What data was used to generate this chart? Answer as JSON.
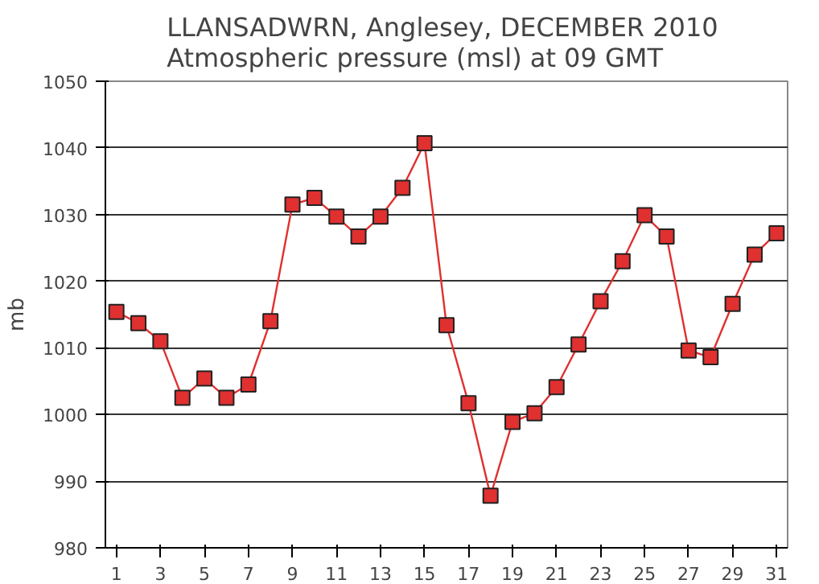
{
  "chart_data": {
    "type": "line",
    "title": "LLANSADWRN, Anglesey,  DECEMBER 2010\nAtmospheric pressure  (msl) at 09 GMT",
    "ylabel": "mb",
    "x": [
      1,
      2,
      3,
      4,
      5,
      6,
      7,
      8,
      9,
      10,
      11,
      12,
      13,
      14,
      15,
      16,
      17,
      18,
      19,
      20,
      21,
      22,
      23,
      24,
      25,
      26,
      27,
      28,
      29,
      30,
      31
    ],
    "series": [
      {
        "color": "#e03030",
        "values": [
          1015.4,
          1013.7,
          1011.0,
          1002.5,
          1005.4,
          1002.5,
          1004.5,
          1014.0,
          1031.5,
          1032.5,
          1029.7,
          1026.7,
          1029.7,
          1034.0,
          1040.7,
          1013.4,
          1001.7,
          987.8,
          998.9,
          1000.2,
          1004.1,
          1010.5,
          1017.0,
          1023.0,
          1029.9,
          1026.7,
          1009.6,
          1008.6,
          1016.6,
          1024.0,
          1027.2
        ]
      }
    ],
    "xlim": [
      0.5,
      31.5
    ],
    "xticks": [
      1,
      3,
      5,
      7,
      9,
      11,
      13,
      15,
      17,
      19,
      21,
      23,
      25,
      27,
      29,
      31
    ],
    "ylim": [
      980,
      1050
    ],
    "yticks": [
      980,
      990,
      1000,
      1010,
      1020,
      1030,
      1040,
      1050
    ],
    "grid": "y",
    "marker": "square",
    "line_style": "solid"
  }
}
